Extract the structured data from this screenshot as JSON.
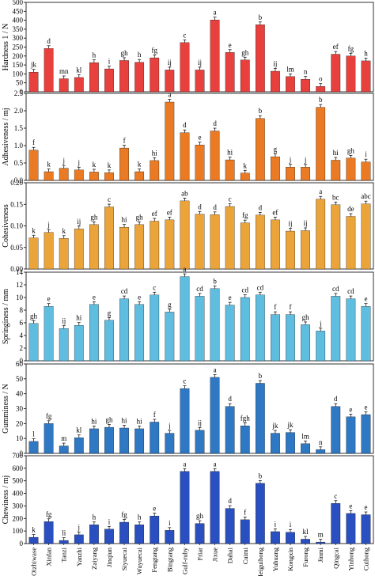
{
  "chart_data": {
    "type": "bar",
    "categories": [
      "Oizhiwase",
      "Xinfan",
      "Tanzi",
      "Yanzhi",
      "Zaiyang",
      "Jinqiun",
      "Siyuecai",
      "Wuyuecai",
      "Fengtang",
      "Bingtang",
      "Gulf-ruby",
      "Friar",
      "Jixue",
      "Dahai",
      "Cuimi",
      "Meiguihong",
      "Yuhuang",
      "Kongxin",
      "Furong",
      "Jinmi",
      "Qingcai",
      "Yinhong",
      "Cuihong"
    ],
    "panels": [
      {
        "ylabel": "Hardness 1 / N",
        "ylim": [
          0,
          500
        ],
        "yticks": [
          0,
          50,
          100,
          150,
          200,
          250,
          300,
          350,
          400,
          450,
          500
        ],
        "color": "#e8403d",
        "values": [
          110,
          242,
          73,
          80,
          163,
          128,
          175,
          165,
          190,
          122,
          275,
          122,
          402,
          220,
          178,
          375,
          115,
          85,
          70,
          30,
          210,
          200,
          173
        ],
        "letters": [
          "jk",
          "d",
          "mn",
          "kl",
          "h",
          "i",
          "gh",
          "h",
          "fg",
          "ij",
          "c",
          "ij",
          "a",
          "e",
          "gh",
          "b",
          "ij",
          "lm",
          "n",
          "o",
          "ef",
          "fg",
          "h"
        ]
      },
      {
        "ylabel": "Adhesiveness / mj",
        "ylim": [
          0,
          2.5
        ],
        "yticks": [
          0.0,
          0.5,
          1.0,
          1.5,
          2.0,
          2.5
        ],
        "color": "#ea7a23",
        "values": [
          0.87,
          0.25,
          0.35,
          0.3,
          0.24,
          0.22,
          0.93,
          0.25,
          0.57,
          2.25,
          1.37,
          1.02,
          1.42,
          0.59,
          0.21,
          1.78,
          0.68,
          0.38,
          0.38,
          2.1,
          0.58,
          0.64,
          0.53
        ],
        "letters": [
          "f",
          "k",
          "j",
          "j",
          "k",
          "k",
          "f",
          "k",
          "hi",
          "a",
          "d",
          "e",
          "d",
          "hi",
          "k",
          "b",
          "g",
          "j",
          "j",
          "b",
          "hi",
          "gh",
          "i"
        ]
      },
      {
        "ylabel": "Cohesiveness",
        "ylim": [
          0.0,
          0.2
        ],
        "yticks": [
          0.0,
          0.05,
          0.1,
          0.15,
          0.2
        ],
        "color": "#eba43a",
        "values": [
          0.072,
          0.085,
          0.071,
          0.093,
          0.103,
          0.144,
          0.097,
          0.103,
          0.111,
          0.114,
          0.158,
          0.127,
          0.126,
          0.145,
          0.107,
          0.125,
          0.114,
          0.088,
          0.089,
          0.162,
          0.149,
          0.122,
          0.151
        ],
        "letters": [
          "k",
          "j",
          "k",
          "ij",
          "gh",
          "c",
          "hi",
          "gh",
          "ef",
          "ef",
          "ab",
          "d",
          "d",
          "c",
          "fg",
          "d",
          "ef",
          "ij",
          "ij",
          "a",
          "bc",
          "de",
          "abc"
        ]
      },
      {
        "ylabel": "Springiness / mm",
        "ylim": [
          0.0,
          14.0
        ],
        "yticks": [
          0.0,
          2.0,
          4.0,
          6.0,
          8.0,
          10.0,
          12.0,
          14.0
        ],
        "color": "#5fbde0",
        "values": [
          5.9,
          8.6,
          5.1,
          5.6,
          8.9,
          6.4,
          9.8,
          8.9,
          10.4,
          7.7,
          13.3,
          10.2,
          11.4,
          8.8,
          10.0,
          10.4,
          7.3,
          7.3,
          5.7,
          4.7,
          10.2,
          9.8,
          8.6
        ],
        "letters": [
          "gh",
          "e",
          "ij",
          "hi",
          "e",
          "g",
          "cd",
          "e",
          "c",
          "g",
          "a",
          "cd",
          "b",
          "e",
          "cd",
          "cd",
          "f",
          "f",
          "gh",
          "j",
          "cd",
          "cd",
          "e"
        ]
      },
      {
        "ylabel": "Gumminess / N",
        "ylim": [
          0,
          60
        ],
        "yticks": [
          0,
          10,
          20,
          30,
          40,
          50,
          60
        ],
        "color": "#2f78c4",
        "values": [
          8,
          20,
          5,
          10.5,
          16.5,
          17.5,
          17,
          16.5,
          21,
          13.5,
          43.5,
          15.5,
          51,
          31.5,
          18.5,
          47,
          13.5,
          14,
          6.5,
          2.5,
          31.5,
          24.5,
          26
        ],
        "letters": [
          "l",
          "fg",
          "m",
          "kl",
          "hi",
          "gh",
          "hi",
          "hi",
          "f",
          "j",
          "c",
          "ij",
          "a",
          "d",
          "fgh",
          "b",
          "jk",
          "jk",
          "lm",
          "n",
          "d",
          "e",
          "e"
        ]
      },
      {
        "ylabel": "Chewiness / mj",
        "ylim": [
          0,
          700
        ],
        "yticks": [
          0,
          100,
          200,
          300,
          400,
          500,
          600,
          700
        ],
        "color": "#2a4fc0",
        "values": [
          50,
          175,
          25,
          70,
          150,
          115,
          170,
          150,
          220,
          105,
          575,
          160,
          575,
          280,
          190,
          480,
          95,
          90,
          35,
          12,
          320,
          240,
          230
        ],
        "letters": [
          "k",
          "fg",
          "li",
          "j",
          "h",
          "i",
          "fg",
          "h",
          "e",
          "i",
          "a",
          "gh",
          "a",
          "d",
          "f",
          "b",
          "i",
          "i",
          "kl",
          "m",
          "c",
          "e",
          "e"
        ]
      }
    ]
  }
}
